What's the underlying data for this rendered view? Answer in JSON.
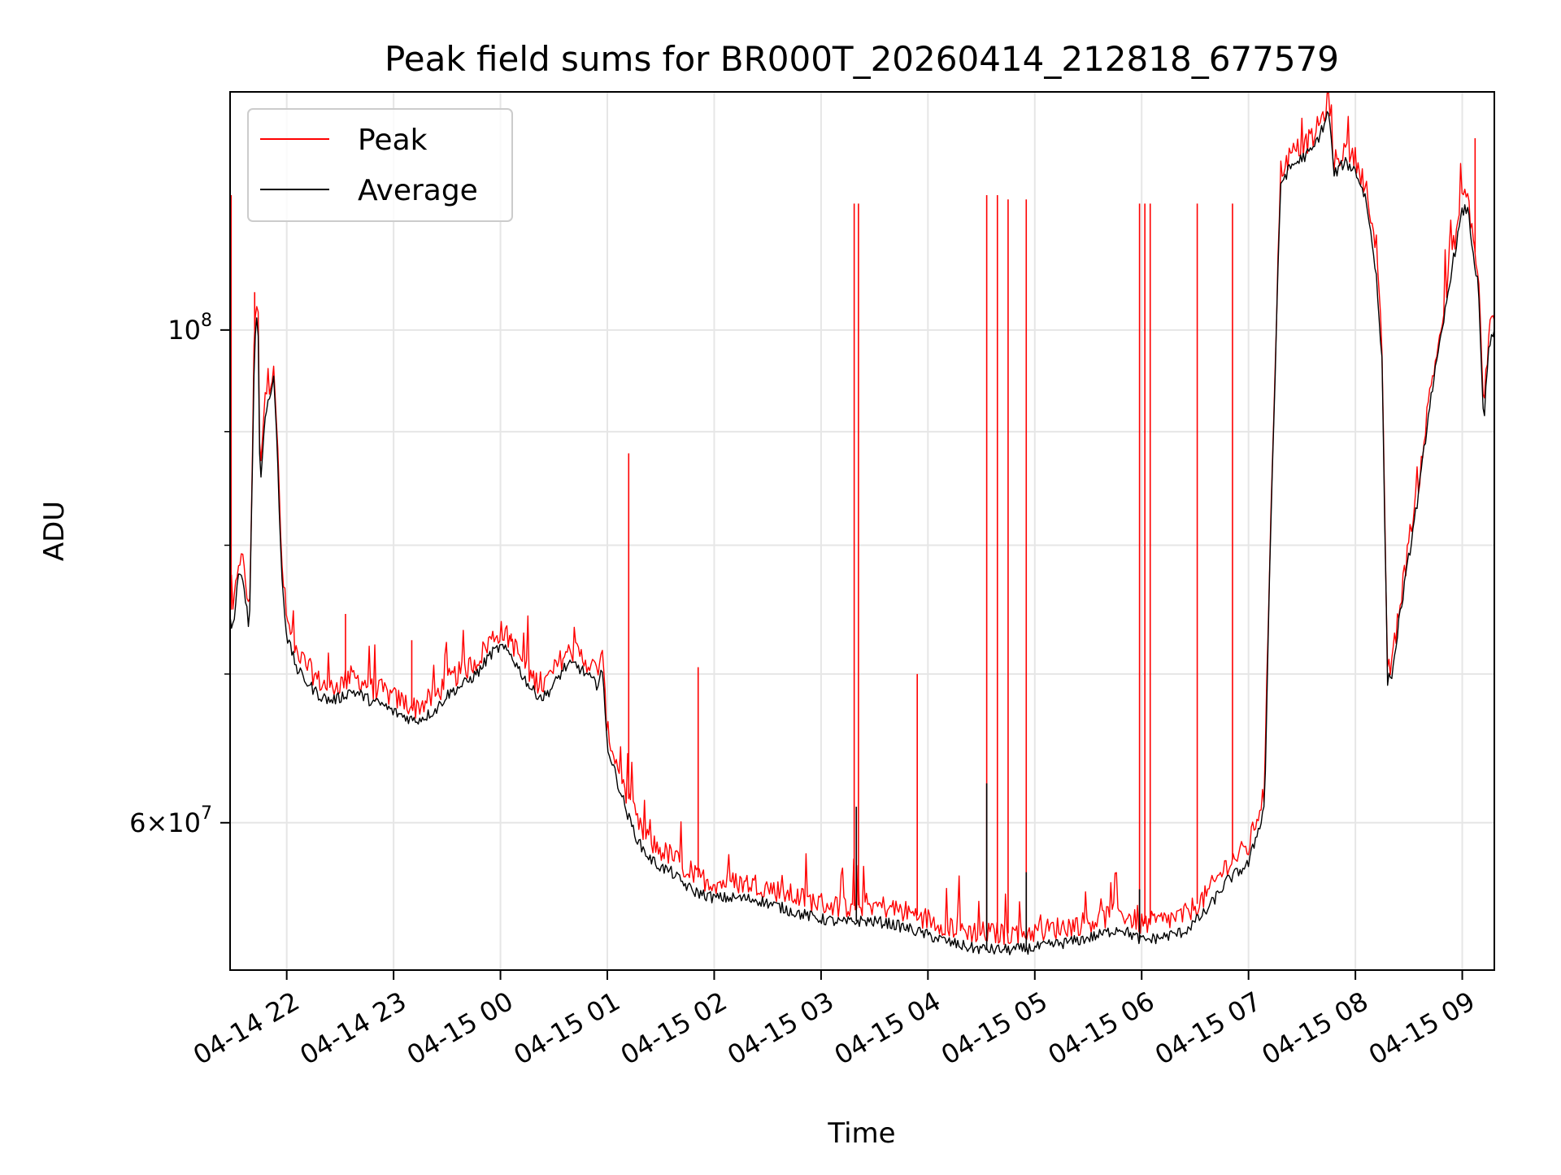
{
  "chart_data": {
    "type": "line",
    "title": "Peak field sums for BR000T_20260414_212818_677579",
    "xlabel": "Time",
    "ylabel": "ADU",
    "yscale": "log",
    "ylim": [
      51500000,
      128000000
    ],
    "xlim": [
      21.47,
      33.3
    ],
    "grid": true,
    "legend_position": "upper-left",
    "x_ticks": [
      {
        "value": 22,
        "label": "04-14 22"
      },
      {
        "value": 23,
        "label": "04-14 23"
      },
      {
        "value": 24,
        "label": "04-15 00"
      },
      {
        "value": 25,
        "label": "04-15 01"
      },
      {
        "value": 26,
        "label": "04-15 02"
      },
      {
        "value": 27,
        "label": "04-15 03"
      },
      {
        "value": 28,
        "label": "04-15 04"
      },
      {
        "value": 29,
        "label": "04-15 05"
      },
      {
        "value": 30,
        "label": "04-15 06"
      },
      {
        "value": 31,
        "label": "04-15 07"
      },
      {
        "value": 32,
        "label": "04-15 08"
      },
      {
        "value": 33,
        "label": "04-15 09"
      }
    ],
    "y_major_ticks": [
      {
        "value": 60000000,
        "base": "6×10",
        "exp": "7"
      },
      {
        "value": 100000000,
        "base": "10",
        "exp": "8"
      }
    ],
    "y_minor_ticks": [
      70000000,
      80000000,
      90000000
    ],
    "series": [
      {
        "name": "Peak",
        "color": "#ff0000",
        "points": [
          [
            21.47,
            75000000
          ],
          [
            21.5,
            74500000
          ],
          [
            21.55,
            79000000
          ],
          [
            21.6,
            78500000
          ],
          [
            21.65,
            74000000
          ],
          [
            21.7,
            100000000
          ],
          [
            21.73,
            104000000
          ],
          [
            21.75,
            85500000
          ],
          [
            21.8,
            93500000
          ],
          [
            21.85,
            95000000
          ],
          [
            21.88,
            97000000
          ],
          [
            21.92,
            87000000
          ],
          [
            21.95,
            79000000
          ],
          [
            22.0,
            74000000
          ],
          [
            22.1,
            71500000
          ],
          [
            22.2,
            70500000
          ],
          [
            22.3,
            69500000
          ],
          [
            22.4,
            69000000
          ],
          [
            22.5,
            69300000
          ],
          [
            22.6,
            69800000
          ],
          [
            22.7,
            69500000
          ],
          [
            22.8,
            69000000
          ],
          [
            22.9,
            68800000
          ],
          [
            23.0,
            68300000
          ],
          [
            23.1,
            68000000
          ],
          [
            23.2,
            67600000
          ],
          [
            23.3,
            68000000
          ],
          [
            23.4,
            68500000
          ],
          [
            23.5,
            69500000
          ],
          [
            23.6,
            70000000
          ],
          [
            23.7,
            70500000
          ],
          [
            23.8,
            71200000
          ],
          [
            23.9,
            72500000
          ],
          [
            24.0,
            73200000
          ],
          [
            24.1,
            72500000
          ],
          [
            24.2,
            71000000
          ],
          [
            24.3,
            69700000
          ],
          [
            24.4,
            69200000
          ],
          [
            24.5,
            70200000
          ],
          [
            24.6,
            71500000
          ],
          [
            24.7,
            71700000
          ],
          [
            24.8,
            71000000
          ],
          [
            24.9,
            70200000
          ],
          [
            24.95,
            71500000
          ],
          [
            25.0,
            66000000
          ],
          [
            25.1,
            63500000
          ],
          [
            25.2,
            61500000
          ],
          [
            25.3,
            59700000
          ],
          [
            25.4,
            58800000
          ],
          [
            25.5,
            58300000
          ],
          [
            25.6,
            58000000
          ],
          [
            25.7,
            57400000
          ],
          [
            25.8,
            56800000
          ],
          [
            25.9,
            56600000
          ],
          [
            26.0,
            56400000
          ],
          [
            26.2,
            56400000
          ],
          [
            26.4,
            56300000
          ],
          [
            26.6,
            55900000
          ],
          [
            26.8,
            55500000
          ],
          [
            27.0,
            55200000
          ],
          [
            27.2,
            55000000
          ],
          [
            27.4,
            55100000
          ],
          [
            27.6,
            55000000
          ],
          [
            27.8,
            54700000
          ],
          [
            28.0,
            54300000
          ],
          [
            28.2,
            53900000
          ],
          [
            28.4,
            53600000
          ],
          [
            28.6,
            53500000
          ],
          [
            28.8,
            53500000
          ],
          [
            29.0,
            53600000
          ],
          [
            29.2,
            53800000
          ],
          [
            29.4,
            54000000
          ],
          [
            29.6,
            54300000
          ],
          [
            29.8,
            54700000
          ],
          [
            30.0,
            54000000
          ],
          [
            30.2,
            54200000
          ],
          [
            30.4,
            54500000
          ],
          [
            30.6,
            55600000
          ],
          [
            30.8,
            57500000
          ],
          [
            31.0,
            58500000
          ],
          [
            31.15,
            62000000
          ],
          [
            31.2,
            80000000
          ],
          [
            31.3,
            118000000
          ],
          [
            31.4,
            120000000
          ],
          [
            31.5,
            121000000
          ],
          [
            31.6,
            122000000
          ],
          [
            31.7,
            125000000
          ],
          [
            31.75,
            127000000
          ],
          [
            31.8,
            119000000
          ],
          [
            31.9,
            120500000
          ],
          [
            32.0,
            119500000
          ],
          [
            32.1,
            116000000
          ],
          [
            32.2,
            107000000
          ],
          [
            32.25,
            98000000
          ],
          [
            32.3,
            70000000
          ],
          [
            32.35,
            71000000
          ],
          [
            32.4,
            74500000
          ],
          [
            32.5,
            80000000
          ],
          [
            32.6,
            86000000
          ],
          [
            32.7,
            94000000
          ],
          [
            32.8,
            100000000
          ],
          [
            32.9,
            108000000
          ],
          [
            33.0,
            114500000
          ],
          [
            33.05,
            115000000
          ],
          [
            33.1,
            110000000
          ],
          [
            33.15,
            106000000
          ],
          [
            33.2,
            92000000
          ],
          [
            33.25,
            100000000
          ],
          [
            33.3,
            101000000
          ]
        ],
        "spikes": [
          [
            21.48,
            115000000
          ],
          [
            21.7,
            104000000
          ],
          [
            22.55,
            74500000
          ],
          [
            23.17,
            72500000
          ],
          [
            24.1,
            73000000
          ],
          [
            25.2,
            88000000
          ],
          [
            25.85,
            70500000
          ],
          [
            27.31,
            114000000
          ],
          [
            27.35,
            114000000
          ],
          [
            27.9,
            70000000
          ],
          [
            28.55,
            115000000
          ],
          [
            28.65,
            115000000
          ],
          [
            28.75,
            114500000
          ],
          [
            28.92,
            114500000
          ],
          [
            29.98,
            114000000
          ],
          [
            30.03,
            114000000
          ],
          [
            30.08,
            114000000
          ],
          [
            30.52,
            114000000
          ],
          [
            30.85,
            114000000
          ],
          [
            33.12,
            122000000
          ]
        ]
      },
      {
        "name": "Average",
        "color": "#000000",
        "points": [
          [
            21.47,
            74000000
          ],
          [
            21.5,
            73500000
          ],
          [
            21.55,
            77500000
          ],
          [
            21.6,
            77000000
          ],
          [
            21.65,
            73000000
          ],
          [
            21.7,
            99000000
          ],
          [
            21.73,
            102500000
          ],
          [
            21.75,
            84500000
          ],
          [
            21.8,
            92000000
          ],
          [
            21.85,
            93500000
          ],
          [
            21.88,
            95500000
          ],
          [
            21.92,
            86000000
          ],
          [
            21.95,
            78000000
          ],
          [
            22.0,
            72800000
          ],
          [
            22.1,
            70300000
          ],
          [
            22.2,
            69300000
          ],
          [
            22.3,
            68500000
          ],
          [
            22.4,
            68100000
          ],
          [
            22.5,
            68300000
          ],
          [
            22.6,
            68800000
          ],
          [
            22.7,
            68500000
          ],
          [
            22.8,
            68000000
          ],
          [
            22.9,
            67800000
          ],
          [
            23.0,
            67300000
          ],
          [
            23.1,
            67000000
          ],
          [
            23.2,
            66700000
          ],
          [
            23.3,
            67000000
          ],
          [
            23.4,
            67500000
          ],
          [
            23.5,
            68500000
          ],
          [
            23.6,
            69000000
          ],
          [
            23.7,
            69500000
          ],
          [
            23.8,
            70200000
          ],
          [
            23.9,
            71400000
          ],
          [
            24.0,
            72000000
          ],
          [
            24.1,
            71400000
          ],
          [
            24.2,
            70000000
          ],
          [
            24.3,
            68800000
          ],
          [
            24.4,
            68300000
          ],
          [
            24.5,
            69200000
          ],
          [
            24.6,
            70500000
          ],
          [
            24.7,
            70700000
          ],
          [
            24.8,
            70000000
          ],
          [
            24.9,
            69200000
          ],
          [
            24.95,
            70500000
          ],
          [
            25.0,
            65000000
          ],
          [
            25.1,
            62500000
          ],
          [
            25.2,
            60300000
          ],
          [
            25.3,
            58700000
          ],
          [
            25.4,
            57800000
          ],
          [
            25.5,
            57300000
          ],
          [
            25.6,
            57000000
          ],
          [
            25.7,
            56400000
          ],
          [
            25.8,
            55900000
          ],
          [
            25.9,
            55700000
          ],
          [
            26.0,
            55500000
          ],
          [
            26.2,
            55500000
          ],
          [
            26.4,
            55400000
          ],
          [
            26.6,
            55000000
          ],
          [
            26.8,
            54600000
          ],
          [
            27.0,
            54300000
          ],
          [
            27.2,
            54100000
          ],
          [
            27.4,
            54200000
          ],
          [
            27.6,
            54100000
          ],
          [
            27.8,
            53800000
          ],
          [
            28.0,
            53400000
          ],
          [
            28.2,
            53000000
          ],
          [
            28.4,
            52700000
          ],
          [
            28.6,
            52600000
          ],
          [
            28.8,
            52600000
          ],
          [
            29.0,
            52700000
          ],
          [
            29.2,
            52900000
          ],
          [
            29.4,
            53100000
          ],
          [
            29.6,
            53400000
          ],
          [
            29.8,
            53800000
          ],
          [
            30.0,
            53100000
          ],
          [
            30.2,
            53300000
          ],
          [
            30.4,
            53600000
          ],
          [
            30.6,
            54700000
          ],
          [
            30.8,
            56500000
          ],
          [
            31.0,
            57500000
          ],
          [
            31.15,
            61000000
          ],
          [
            31.2,
            79000000
          ],
          [
            31.3,
            116500000
          ],
          [
            31.4,
            118500000
          ],
          [
            31.5,
            119500000
          ],
          [
            31.6,
            120500000
          ],
          [
            31.7,
            123500000
          ],
          [
            31.75,
            125500000
          ],
          [
            31.8,
            117500000
          ],
          [
            31.9,
            119000000
          ],
          [
            32.0,
            118000000
          ],
          [
            32.1,
            114500000
          ],
          [
            32.2,
            105500000
          ],
          [
            32.25,
            96500000
          ],
          [
            32.3,
            69500000
          ],
          [
            32.35,
            70200000
          ],
          [
            32.4,
            73500000
          ],
          [
            32.5,
            79000000
          ],
          [
            32.6,
            85000000
          ],
          [
            32.7,
            93000000
          ],
          [
            32.8,
            99000000
          ],
          [
            32.9,
            106500000
          ],
          [
            33.0,
            113000000
          ],
          [
            33.05,
            113500000
          ],
          [
            33.1,
            108500000
          ],
          [
            33.15,
            104500000
          ],
          [
            33.2,
            90500000
          ],
          [
            33.25,
            98500000
          ],
          [
            33.3,
            99500000
          ]
        ],
        "spikes": [
          [
            27.33,
            61000000
          ],
          [
            28.55,
            62500000
          ],
          [
            28.92,
            57000000
          ],
          [
            29.98,
            56000000
          ]
        ]
      }
    ]
  }
}
